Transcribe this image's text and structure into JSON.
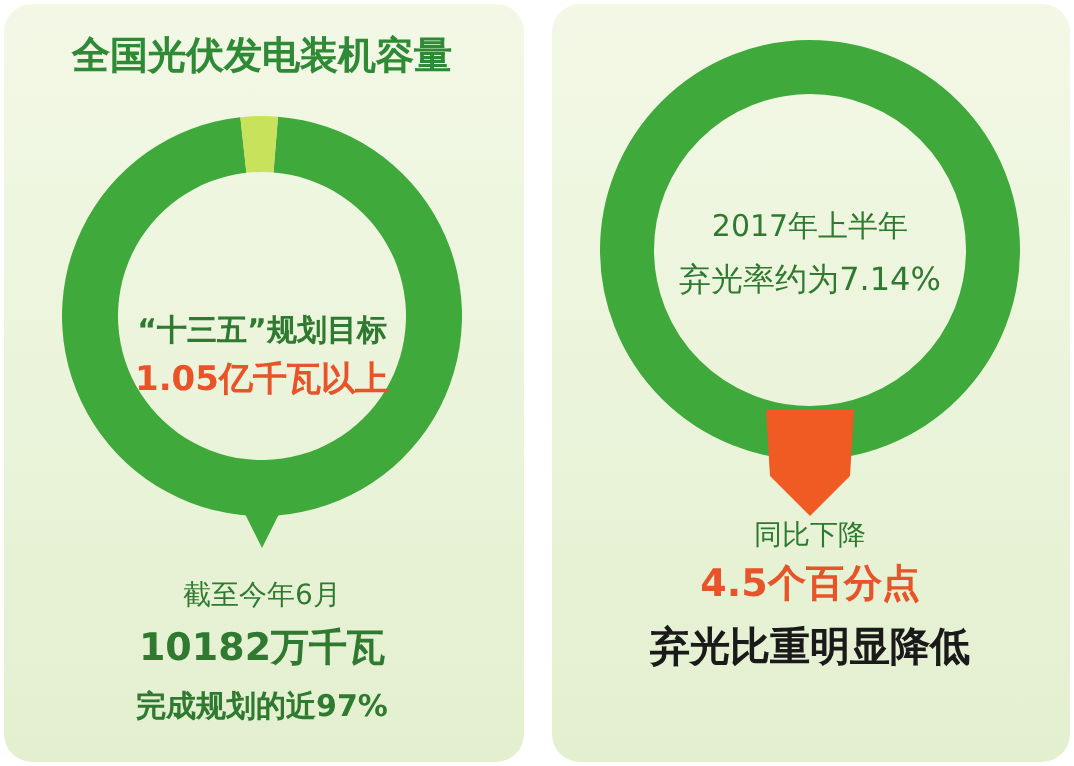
{
  "chart_data": [
    {
      "type": "donut",
      "title": "全国光伏发电装机容量",
      "categories": [
        null,
        null
      ],
      "values": [
        97,
        3
      ],
      "colors": [
        "#3fa93c",
        "#c9e25c"
      ],
      "annotations": [
        "“十三五”规划目标",
        "1.05亿千瓦以上",
        "截至今年6月",
        "10182万千瓦",
        "完成规划的近97%"
      ]
    },
    {
      "type": "other",
      "title": "弃光比重明显降低",
      "annotations": [
        "2017年上半年",
        "弃光率约为7.14%",
        "同比下降",
        "4.5个百分点"
      ]
    }
  ]
}
